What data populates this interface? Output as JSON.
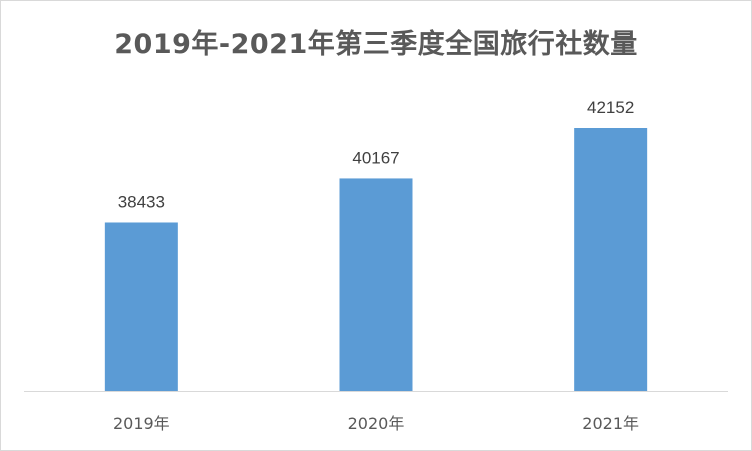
{
  "chart_data": {
    "type": "bar",
    "title": "2019年-2021年第三季度全国旅行社数量",
    "categories": [
      "2019年",
      "2020年",
      "2021年"
    ],
    "values": [
      38433,
      40167,
      42152
    ],
    "xlabel": "",
    "ylabel": "",
    "grid": false,
    "data_labels": true,
    "bar_color": "#5b9bd5"
  }
}
